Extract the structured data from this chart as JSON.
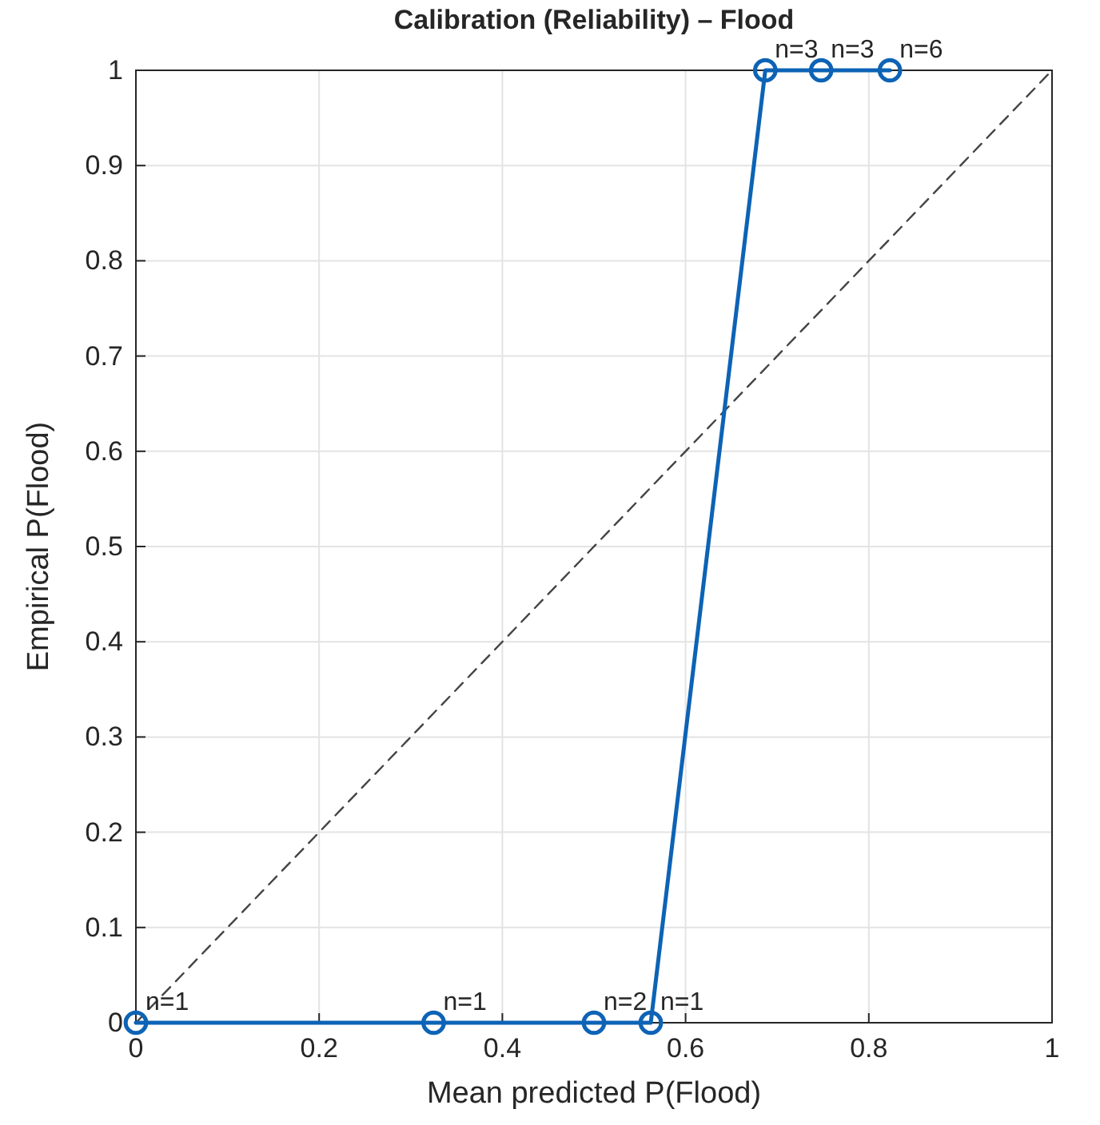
{
  "chart_data": {
    "type": "line",
    "title": "Calibration (Reliability) – Flood",
    "xlabel": "Mean predicted P(Flood)",
    "ylabel": "Empirical P(Flood)",
    "xlim": [
      0,
      1
    ],
    "ylim": [
      0,
      1
    ],
    "xticks": [
      0,
      0.2,
      0.4,
      0.6,
      0.8,
      1
    ],
    "yticks": [
      0,
      0.1,
      0.2,
      0.3,
      0.4,
      0.5,
      0.6,
      0.7,
      0.8,
      0.9,
      1
    ],
    "grid": true,
    "series": [
      {
        "color": "#444444",
        "line_style": "dashed",
        "marker": "none",
        "x": [
          0,
          1
        ],
        "values": [
          0,
          1
        ]
      },
      {
        "color": "#0d63b5",
        "line_style": "solid",
        "marker": "circle",
        "x": [
          0,
          0.325,
          0.5,
          0.562,
          0.687,
          0.748,
          0.823
        ],
        "values": [
          0,
          0,
          0,
          0,
          1,
          1,
          1
        ]
      }
    ],
    "annotations": [
      {
        "text": "n=1",
        "x": 0,
        "y": 0
      },
      {
        "text": "n=1",
        "x": 0.325,
        "y": 0
      },
      {
        "text": "n=2",
        "x": 0.5,
        "y": 0
      },
      {
        "text": "n=1",
        "x": 0.562,
        "y": 0
      },
      {
        "text": "n=3",
        "x": 0.687,
        "y": 1
      },
      {
        "text": "n=3",
        "x": 0.748,
        "y": 1
      },
      {
        "text": "n=6",
        "x": 0.823,
        "y": 1
      }
    ]
  }
}
